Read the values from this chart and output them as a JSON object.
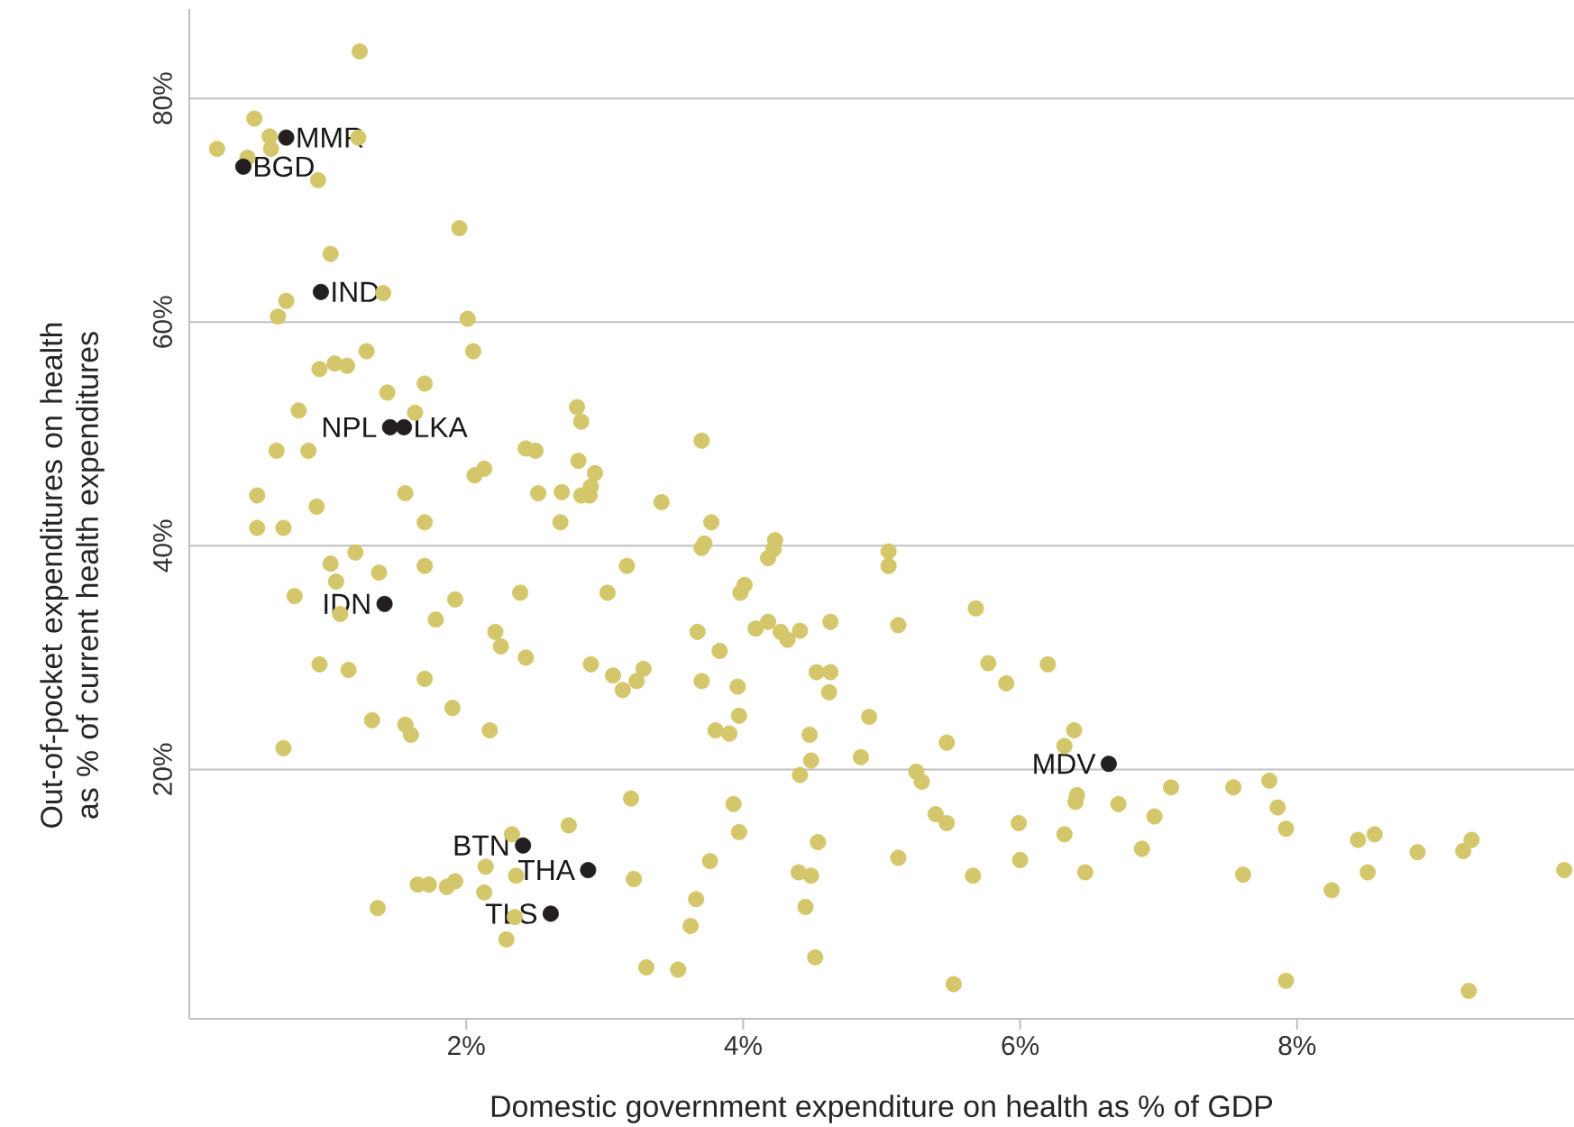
{
  "chart_data": {
    "type": "scatter",
    "xlabel": "Domestic government expenditure on health as % of GDP",
    "ylabel": "Out-of-pocket expenditures on health as % of current health expenditures",
    "xlim": [
      0,
      10.0
    ],
    "ylim": [
      -2.3,
      88
    ],
    "xticks": [
      {
        "value": 2,
        "label": "2%"
      },
      {
        "value": 4,
        "label": "4%"
      },
      {
        "value": 6,
        "label": "6%"
      },
      {
        "value": 8,
        "label": "8%"
      }
    ],
    "yticks": [
      {
        "value": 20,
        "label": "20%"
      },
      {
        "value": 40,
        "label": "40%"
      },
      {
        "value": 60,
        "label": "60%"
      },
      {
        "value": 80,
        "label": "80%"
      }
    ],
    "grid": "y",
    "series": [
      {
        "color": "#d4c66a",
        "x": [
          1.23,
          0.47,
          0.2,
          0.58,
          0.59,
          0.42,
          0.93,
          1.22,
          1.95,
          1.02,
          1.4,
          0.7,
          0.64,
          2.01,
          2.05,
          1.28,
          0.94,
          1.05,
          1.14,
          1.7,
          1.43,
          0.79,
          1.63,
          0.63,
          0.86,
          2.43,
          2.5,
          2.13,
          2.06,
          0.49,
          0.92,
          1.56,
          2.52,
          1.7,
          0.49,
          0.68,
          1.2,
          1.02,
          1.37,
          1.7,
          1.06,
          0.76,
          1.09,
          1.92,
          1.78,
          2.39,
          2.21,
          2.25,
          2.43,
          0.94,
          1.15,
          1.7,
          1.9,
          1.32,
          1.56,
          1.6,
          2.17,
          0.68,
          2.33,
          2.14,
          2.36,
          1.65,
          1.73,
          1.86,
          1.92,
          2.13,
          1.36,
          2.35,
          2.29,
          2.8,
          2.83,
          3.7,
          2.81,
          2.93,
          2.9,
          2.69,
          2.83,
          2.89,
          3.41,
          2.68,
          3.77,
          3.7,
          3.72,
          4.23,
          4.22,
          4.18,
          5.05,
          5.05,
          3.16,
          3.02,
          4.01,
          3.98,
          3.67,
          3.83,
          4.09,
          4.18,
          4.27,
          4.32,
          4.41,
          4.63,
          5.12,
          5.68,
          2.9,
          3.06,
          3.13,
          3.23,
          3.28,
          3.7,
          3.96,
          4.53,
          4.63,
          4.62,
          5.77,
          5.9,
          6.2,
          3.97,
          3.8,
          3.9,
          4.91,
          4.48,
          4.49,
          4.41,
          4.85,
          5.47,
          5.25,
          5.29,
          6.39,
          6.32,
          3.19,
          3.93,
          2.74,
          3.97,
          5.39,
          5.47,
          5.99,
          6.32,
          4.54,
          3.76,
          5.12,
          6.0,
          3.21,
          4.4,
          4.49,
          5.66,
          3.66,
          4.45,
          3.62,
          3.3,
          3.53,
          4.52,
          5.52,
          6.41,
          6.4,
          6.71,
          7.09,
          7.54,
          7.8,
          7.86,
          6.97,
          6.88,
          6.47,
          7.61,
          7.92,
          8.44,
          8.56,
          8.87,
          9.2,
          9.26,
          8.51,
          8.25,
          9.93,
          7.92,
          9.24
        ],
        "values": [
          84.2,
          78.2,
          75.5,
          76.6,
          75.5,
          74.7,
          72.7,
          76.5,
          68.4,
          66.1,
          62.6,
          61.9,
          60.5,
          60.3,
          57.4,
          57.4,
          55.8,
          56.3,
          56.1,
          54.5,
          53.7,
          52.1,
          51.9,
          48.5,
          48.5,
          48.7,
          48.5,
          46.9,
          46.3,
          44.5,
          43.5,
          44.7,
          44.7,
          42.1,
          41.6,
          41.6,
          39.4,
          38.4,
          37.6,
          38.2,
          36.8,
          35.5,
          33.9,
          35.2,
          33.4,
          35.8,
          32.3,
          31.0,
          30.0,
          29.4,
          28.9,
          28.1,
          25.5,
          24.4,
          24.0,
          23.1,
          23.5,
          21.9,
          14.2,
          11.3,
          10.5,
          9.7,
          9.7,
          9.5,
          10.0,
          9.0,
          7.6,
          6.8,
          4.8,
          52.4,
          51.1,
          49.4,
          47.6,
          46.5,
          45.3,
          44.8,
          44.5,
          44.5,
          43.9,
          42.1,
          42.1,
          39.8,
          40.2,
          40.5,
          39.7,
          38.9,
          39.5,
          38.2,
          38.2,
          35.8,
          36.5,
          35.8,
          32.3,
          30.6,
          32.6,
          33.2,
          32.3,
          31.6,
          32.4,
          33.2,
          32.9,
          34.4,
          29.4,
          28.4,
          27.1,
          27.9,
          29.0,
          27.9,
          27.4,
          28.7,
          28.7,
          26.9,
          29.5,
          27.7,
          29.4,
          24.8,
          23.5,
          23.2,
          24.7,
          23.1,
          20.8,
          19.5,
          21.1,
          22.4,
          19.8,
          18.9,
          23.5,
          22.1,
          17.4,
          16.9,
          15.0,
          14.4,
          16.0,
          15.2,
          15.2,
          14.2,
          13.5,
          11.8,
          12.1,
          11.9,
          10.2,
          10.8,
          10.5,
          10.5,
          8.4,
          7.7,
          6.0,
          2.3,
          2.1,
          3.2,
          0.8,
          17.7,
          17.1,
          16.9,
          18.4,
          18.4,
          19.0,
          16.6,
          15.8,
          12.9,
          10.8,
          10.6,
          14.7,
          13.7,
          14.2,
          12.6,
          12.7,
          13.7,
          10.8,
          9.2,
          11.0,
          1.1,
          0.2
        ]
      },
      {
        "color": "#231f20",
        "x": [
          0.7,
          0.39,
          0.95,
          1.45,
          1.55,
          1.41,
          2.41,
          2.88,
          2.61,
          6.64
        ],
        "values": [
          76.5,
          73.9,
          62.7,
          50.6,
          50.6,
          34.8,
          13.2,
          11.0,
          7.1,
          20.5
        ]
      }
    ],
    "annotations": [
      {
        "text": "MMR",
        "x": 0.7,
        "y": 76.5
      },
      {
        "text": "BGD",
        "x": 0.39,
        "y": 73.9
      },
      {
        "text": "IND",
        "x": 0.95,
        "y": 62.7
      },
      {
        "text": "NPL",
        "x": 1.45,
        "y": 50.6
      },
      {
        "text": "LKA",
        "x": 1.55,
        "y": 50.6
      },
      {
        "text": "IDN",
        "x": 1.41,
        "y": 34.8
      },
      {
        "text": "BTN",
        "x": 2.41,
        "y": 13.2
      },
      {
        "text": "THA",
        "x": 2.88,
        "y": 11.0
      },
      {
        "text": "TLS",
        "x": 2.61,
        "y": 7.1
      },
      {
        "text": "MDV",
        "x": 6.64,
        "y": 20.5
      }
    ]
  }
}
